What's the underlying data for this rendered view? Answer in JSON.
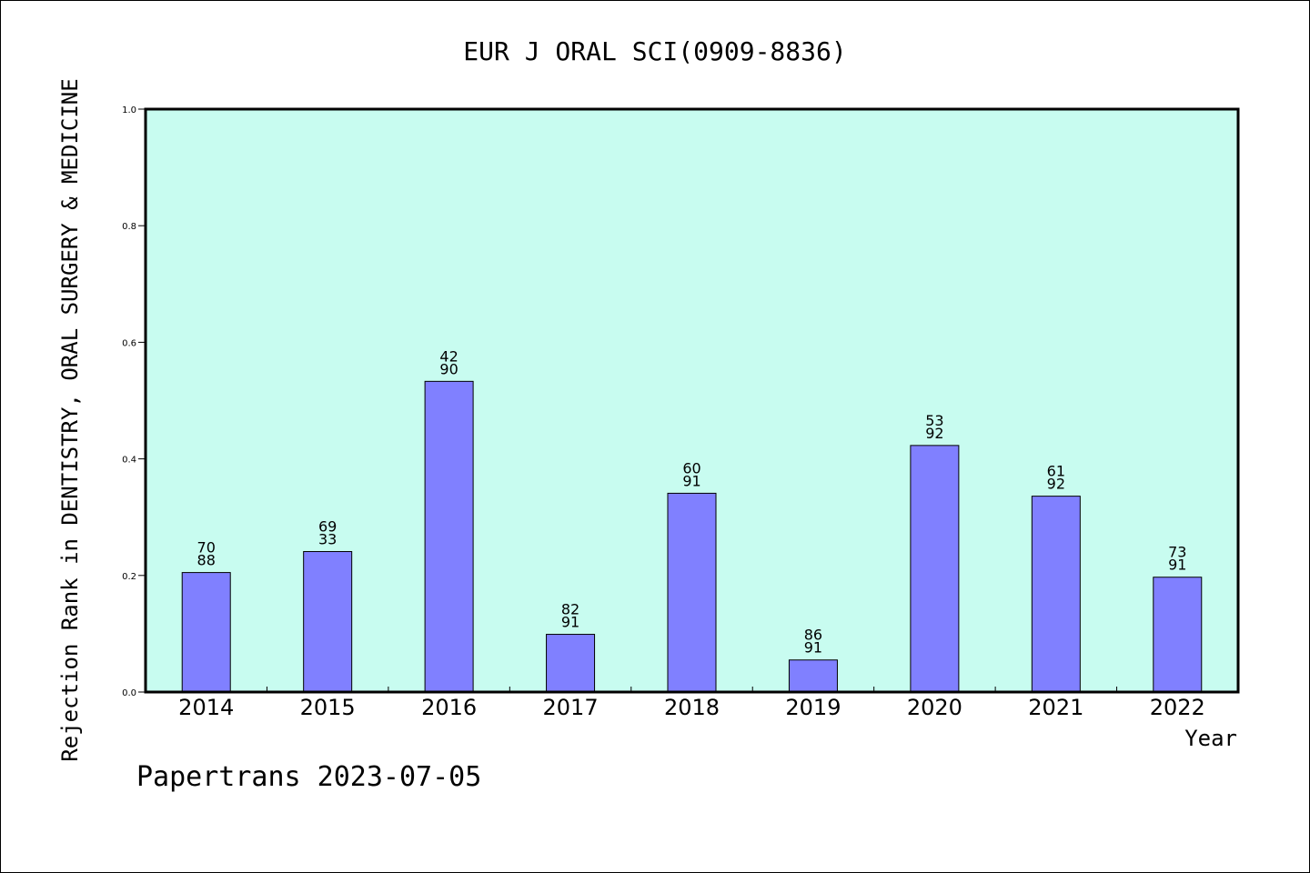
{
  "chart_data": {
    "type": "bar",
    "title": "EUR J ORAL SCI(0909-8836)",
    "xlabel": "Year",
    "ylabel": "Rejection Rank in DENTISTRY, ORAL SURGERY & MEDICINE",
    "ylim": [
      0,
      1.0
    ],
    "yticks": [
      "0.0",
      "0.2",
      "0.4",
      "0.6",
      "0.8",
      "1.0"
    ],
    "grid": false,
    "categories": [
      "2014",
      "2015",
      "2016",
      "2017",
      "2018",
      "2019",
      "2020",
      "2021",
      "2022"
    ],
    "values": [
      0.205,
      0.241,
      0.533,
      0.099,
      0.341,
      0.055,
      0.423,
      0.336,
      0.197
    ],
    "labels_top": [
      "70",
      "69",
      "42",
      "82",
      "60",
      "86",
      "53",
      "61",
      "73"
    ],
    "labels_bottom": [
      "88",
      "33",
      "90",
      "91",
      "91",
      "91",
      "92",
      "92",
      "91"
    ],
    "footer": "Papertrans 2023-07-05",
    "colors": {
      "plot_bg": "#c8fcf0",
      "bar": "#8080ff"
    }
  }
}
